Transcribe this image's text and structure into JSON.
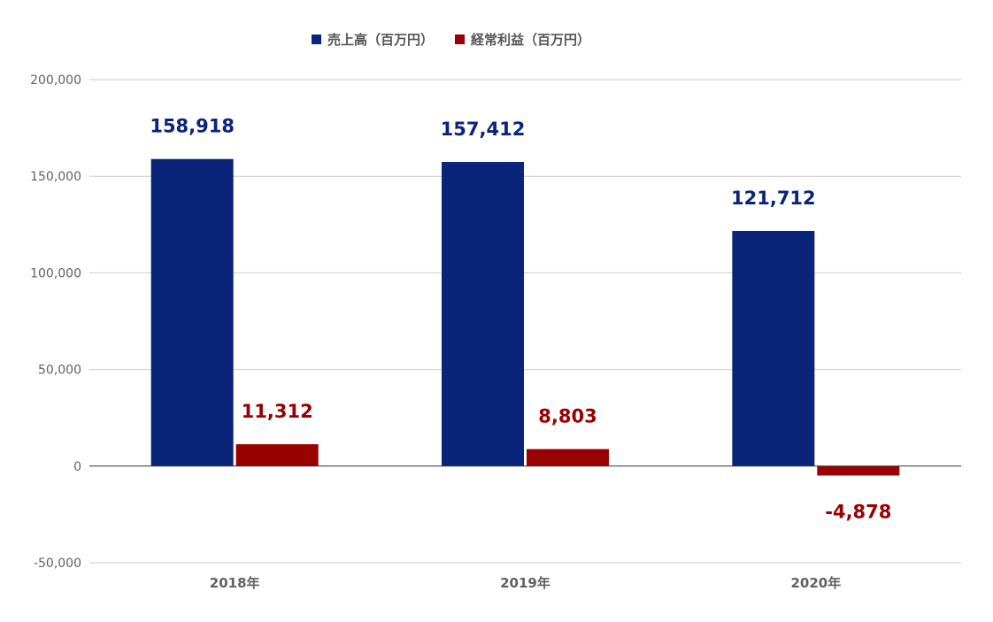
{
  "chart_data": {
    "type": "bar",
    "categories": [
      "2018年",
      "2019年",
      "2020年"
    ],
    "series": [
      {
        "name": "売上高（百万円）",
        "color": "#0a2479",
        "values": [
          158918,
          157412,
          121712
        ],
        "labels": [
          "158,918",
          "157,412",
          "121,712"
        ]
      },
      {
        "name": "経常利益（百万円）",
        "color": "#990000",
        "values": [
          11312,
          8803,
          -4878
        ],
        "labels": [
          "11,312",
          "8,803",
          "-4,878"
        ]
      }
    ],
    "y_ticks": [
      200000,
      150000,
      100000,
      50000,
      0,
      -50000
    ],
    "y_tick_labels": [
      "200,000",
      "150,000",
      "100,000",
      "50,000",
      "0",
      "-50,000"
    ],
    "ylim": [
      -50000,
      200000
    ],
    "grid": true,
    "legend_position": "top-center"
  }
}
